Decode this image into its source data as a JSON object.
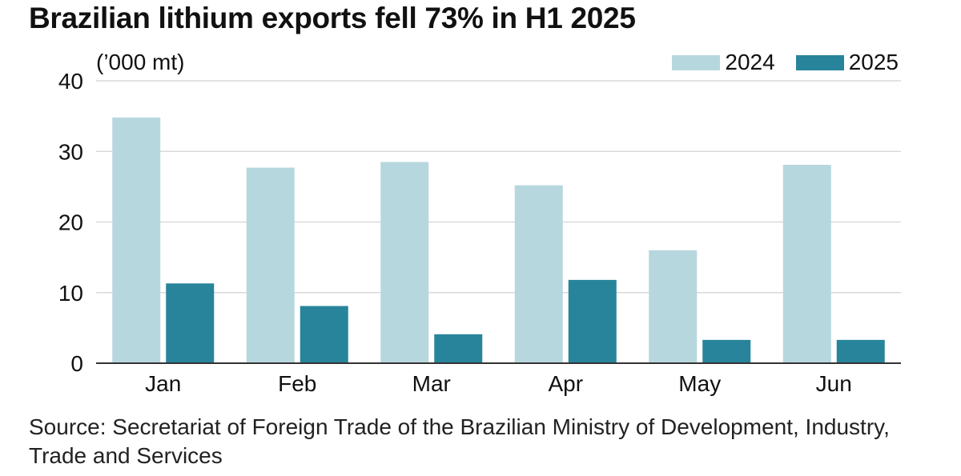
{
  "title": "Brazilian lithium exports fell 73% in H1 2025",
  "unit_label": "(’000 mt)",
  "source": "Source: Secretariat of Foreign Trade of the Brazilian Ministry of Development, Industry, Trade and Services",
  "colors": {
    "series_2024": "#b7d7de",
    "series_2025": "#27849b",
    "grid": "#d9d9d9",
    "axis": "#333333"
  },
  "chart_data": {
    "type": "bar",
    "title": "Brazilian lithium exports fell 73% in H1 2025",
    "ylabel": "(’000 mt)",
    "categories": [
      "Jan",
      "Feb",
      "Mar",
      "Apr",
      "May",
      "Jun"
    ],
    "series": [
      {
        "name": "2024",
        "values": [
          34.8,
          27.7,
          28.5,
          25.2,
          16.0,
          28.1
        ]
      },
      {
        "name": "2025",
        "values": [
          11.3,
          8.1,
          4.1,
          11.8,
          3.3,
          3.3
        ]
      }
    ],
    "ylim": [
      0,
      40
    ],
    "yticks": [
      0,
      10,
      20,
      30,
      40
    ],
    "grid": true,
    "legend": "top-right"
  }
}
